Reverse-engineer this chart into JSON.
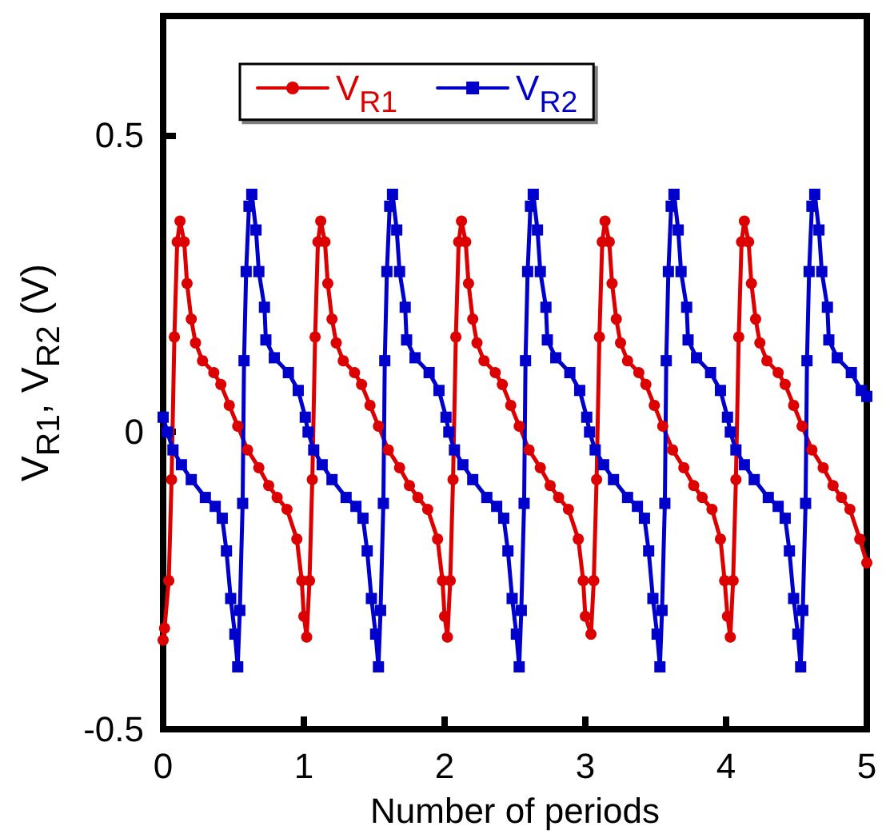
{
  "chart_data": {
    "type": "line",
    "xlabel": "Number of periods",
    "ylabel": "V$_{R1}$, V$_{R2}$ (V)",
    "xlim": [
      0,
      5
    ],
    "xticks": [
      0,
      1,
      2,
      3,
      4,
      5
    ],
    "ylim": [
      -0.5,
      0.7
    ],
    "yticks": [
      -0.5,
      0,
      0.5
    ],
    "grid": false,
    "legend": "top left",
    "line_style": "solid",
    "series": [
      {
        "name": "V$_{R1}$",
        "color": "#dd0000",
        "marker": "circle",
        "x": [
          0.0,
          0.01,
          0.04,
          0.06,
          0.08,
          0.1,
          0.12,
          0.15,
          0.17,
          0.2,
          0.23,
          0.28,
          0.36,
          0.41,
          0.47,
          0.53,
          0.6,
          0.68,
          0.75,
          0.81,
          0.88,
          0.95,
          0.985,
          1.0,
          1.02,
          1.04,
          1.06,
          1.08,
          1.1,
          1.12,
          1.15,
          1.17,
          1.2,
          1.23,
          1.28,
          1.36,
          1.41,
          1.47,
          1.53,
          1.6,
          1.68,
          1.75,
          1.81,
          1.88,
          1.95,
          1.985,
          2.0,
          2.02,
          2.04,
          2.06,
          2.08,
          2.1,
          2.12,
          2.15,
          2.17,
          2.2,
          2.23,
          2.28,
          2.36,
          2.41,
          2.47,
          2.53,
          2.6,
          2.68,
          2.75,
          2.81,
          2.88,
          2.95,
          2.985,
          3.0,
          3.04,
          3.06,
          3.08,
          3.1,
          3.12,
          3.14,
          3.17,
          3.19,
          3.22,
          3.25,
          3.3,
          3.38,
          3.43,
          3.49,
          3.55,
          3.62,
          3.7,
          3.77,
          3.83,
          3.9,
          3.96,
          3.99,
          4.01,
          4.03,
          4.05,
          4.07,
          4.09,
          4.11,
          4.13,
          4.16,
          4.18,
          4.21,
          4.24,
          4.29,
          4.37,
          4.42,
          4.48,
          4.54,
          4.61,
          4.69,
          4.76,
          4.82,
          4.88,
          4.95,
          5.0
        ],
        "values": [
          -0.35,
          -0.33,
          -0.25,
          -0.08,
          0.16,
          0.32,
          0.355,
          0.32,
          0.25,
          0.19,
          0.15,
          0.12,
          0.1,
          0.08,
          0.045,
          0.01,
          -0.03,
          -0.06,
          -0.09,
          -0.11,
          -0.13,
          -0.18,
          -0.25,
          -0.31,
          -0.345,
          -0.25,
          -0.08,
          0.16,
          0.32,
          0.355,
          0.32,
          0.25,
          0.19,
          0.15,
          0.12,
          0.1,
          0.08,
          0.045,
          0.01,
          -0.03,
          -0.06,
          -0.09,
          -0.11,
          -0.13,
          -0.18,
          -0.25,
          -0.31,
          -0.345,
          -0.25,
          -0.08,
          0.16,
          0.32,
          0.355,
          0.32,
          0.25,
          0.19,
          0.15,
          0.12,
          0.1,
          0.08,
          0.045,
          0.01,
          -0.03,
          -0.06,
          -0.09,
          -0.11,
          -0.13,
          -0.18,
          -0.25,
          -0.31,
          -0.34,
          -0.25,
          -0.08,
          0.16,
          0.32,
          0.355,
          0.32,
          0.25,
          0.19,
          0.15,
          0.12,
          0.1,
          0.08,
          0.045,
          0.01,
          -0.03,
          -0.06,
          -0.09,
          -0.11,
          -0.13,
          -0.18,
          -0.25,
          -0.31,
          -0.345,
          -0.25,
          -0.08,
          0.16,
          0.32,
          0.355,
          0.32,
          0.25,
          0.19,
          0.15,
          0.12,
          0.1,
          0.08,
          0.045,
          0.01,
          -0.03,
          -0.06,
          -0.09,
          -0.11,
          -0.13,
          -0.18,
          -0.22
        ]
      },
      {
        "name": "V$_{R2}$",
        "color": "#0000cc",
        "marker": "square",
        "x": [
          0.0,
          0.03,
          0.07,
          0.13,
          0.2,
          0.3,
          0.37,
          0.42,
          0.45,
          0.48,
          0.51,
          0.53,
          0.545,
          0.565,
          0.575,
          0.59,
          0.61,
          0.63,
          0.66,
          0.68,
          0.72,
          0.73,
          0.79,
          0.89,
          0.96,
          1.01,
          1.03,
          1.07,
          1.13,
          1.2,
          1.3,
          1.37,
          1.42,
          1.45,
          1.48,
          1.51,
          1.53,
          1.545,
          1.565,
          1.575,
          1.59,
          1.61,
          1.63,
          1.66,
          1.68,
          1.72,
          1.73,
          1.79,
          1.89,
          1.96,
          2.01,
          2.03,
          2.07,
          2.13,
          2.2,
          2.3,
          2.37,
          2.42,
          2.45,
          2.48,
          2.51,
          2.53,
          2.545,
          2.565,
          2.575,
          2.59,
          2.61,
          2.63,
          2.66,
          2.68,
          2.72,
          2.73,
          2.79,
          2.89,
          2.96,
          3.01,
          3.03,
          3.07,
          3.13,
          3.2,
          3.3,
          3.37,
          3.42,
          3.45,
          3.48,
          3.51,
          3.53,
          3.545,
          3.565,
          3.575,
          3.59,
          3.61,
          3.63,
          3.66,
          3.68,
          3.72,
          3.73,
          3.79,
          3.89,
          3.96,
          4.01,
          4.03,
          4.07,
          4.13,
          4.2,
          4.3,
          4.37,
          4.42,
          4.45,
          4.48,
          4.51,
          4.53,
          4.545,
          4.565,
          4.575,
          4.59,
          4.61,
          4.63,
          4.66,
          4.68,
          4.72,
          4.73,
          4.79,
          4.89,
          4.96,
          5.0
        ],
        "values": [
          0.025,
          0.0,
          -0.03,
          -0.055,
          -0.08,
          -0.11,
          -0.125,
          -0.145,
          -0.2,
          -0.28,
          -0.34,
          -0.395,
          -0.3,
          -0.12,
          0.12,
          0.27,
          0.38,
          0.4,
          0.34,
          0.27,
          0.21,
          0.155,
          0.125,
          0.1,
          0.07,
          0.025,
          0.0,
          -0.03,
          -0.055,
          -0.08,
          -0.11,
          -0.125,
          -0.145,
          -0.2,
          -0.28,
          -0.34,
          -0.395,
          -0.3,
          -0.12,
          0.12,
          0.27,
          0.38,
          0.4,
          0.34,
          0.27,
          0.21,
          0.155,
          0.125,
          0.1,
          0.07,
          0.025,
          0.0,
          -0.03,
          -0.055,
          -0.08,
          -0.11,
          -0.125,
          -0.145,
          -0.2,
          -0.28,
          -0.34,
          -0.395,
          -0.3,
          -0.12,
          0.12,
          0.27,
          0.38,
          0.4,
          0.34,
          0.27,
          0.21,
          0.155,
          0.125,
          0.1,
          0.07,
          0.025,
          0.0,
          -0.03,
          -0.055,
          -0.08,
          -0.11,
          -0.125,
          -0.145,
          -0.2,
          -0.28,
          -0.34,
          -0.395,
          -0.3,
          -0.12,
          0.12,
          0.27,
          0.38,
          0.4,
          0.34,
          0.27,
          0.21,
          0.155,
          0.125,
          0.1,
          0.07,
          0.025,
          0.0,
          -0.03,
          -0.055,
          -0.08,
          -0.11,
          -0.125,
          -0.145,
          -0.2,
          -0.28,
          -0.34,
          -0.395,
          -0.3,
          -0.12,
          0.12,
          0.27,
          0.38,
          0.4,
          0.34,
          0.27,
          0.21,
          0.155,
          0.125,
          0.1,
          0.07,
          0.06
        ]
      }
    ]
  }
}
